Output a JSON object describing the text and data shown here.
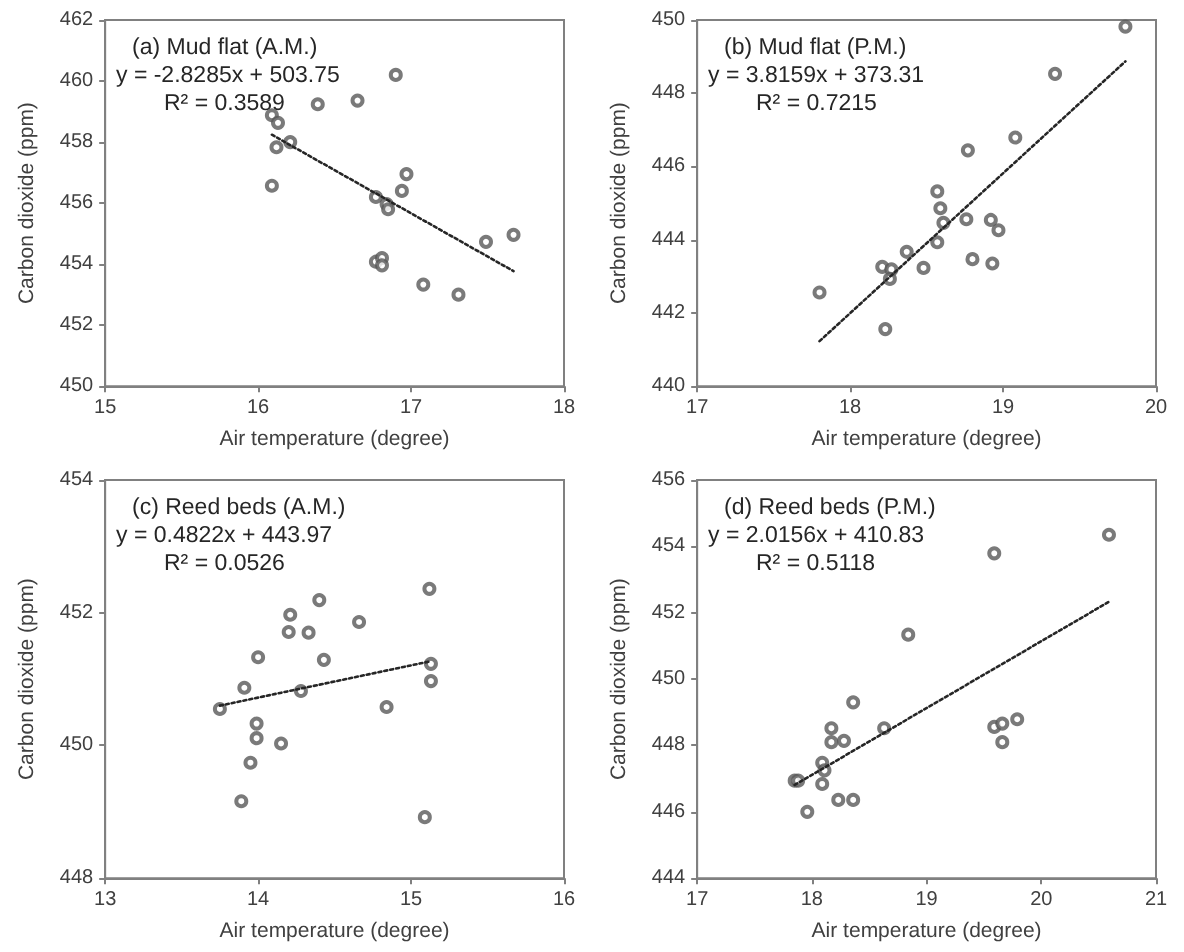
{
  "chart_data": [
    {
      "type": "scatter",
      "title": "(a) Mud flat (A.M.)",
      "annotations": [
        "y = -2.8285x + 503.75",
        "R² = 0.3589"
      ],
      "xlabel": "Air temperature (degree)",
      "ylabel": "Carbon dioxide (ppm)",
      "xlim": [
        15,
        18
      ],
      "xticks": [
        15,
        16,
        17,
        18
      ],
      "ylim": [
        450,
        462
      ],
      "yticks": [
        450,
        452,
        454,
        456,
        458,
        460,
        462
      ],
      "grid": false,
      "marker": "circle",
      "series": [
        {
          "color": "#595959",
          "x": [
            16.09,
            16.13,
            16.12,
            16.21,
            16.09,
            16.39,
            16.65,
            16.9,
            16.97,
            16.94,
            16.77,
            16.84,
            16.85,
            16.77,
            16.81,
            16.81,
            17.08,
            17.31,
            17.49,
            17.67
          ],
          "values": [
            458.88,
            458.63,
            457.83,
            458.0,
            456.57,
            459.24,
            459.36,
            460.2,
            456.95,
            456.4,
            456.2,
            455.97,
            455.8,
            454.08,
            454.2,
            453.96,
            453.33,
            453.0,
            454.73,
            454.96
          ]
        },
        {
          "type": "line",
          "color": "#262626",
          "line_style": "dotted",
          "marker": "none",
          "x": [
            16.09,
            17.67
          ],
          "values": [
            458.24,
            453.77
          ]
        }
      ]
    },
    {
      "type": "scatter",
      "title": "(b) Mud flat (P.M.)",
      "annotations": [
        "y = 3.8159x + 373.31",
        "R² = 0.7215"
      ],
      "xlabel": "Air temperature (degree)",
      "ylabel": "Carbon dioxide (ppm)",
      "xlim": [
        17,
        20
      ],
      "xticks": [
        17,
        18,
        19,
        20
      ],
      "ylim": [
        440,
        450
      ],
      "yticks": [
        440,
        442,
        444,
        446,
        448,
        450
      ],
      "grid": false,
      "marker": "circle",
      "series": [
        {
          "color": "#595959",
          "x": [
            17.8,
            18.21,
            18.27,
            18.26,
            18.23,
            18.37,
            18.48,
            18.57,
            18.59,
            18.61,
            18.57,
            18.76,
            18.77,
            18.8,
            18.92,
            18.97,
            18.93,
            19.08,
            19.34,
            19.8
          ],
          "values": [
            442.56,
            443.26,
            443.19,
            442.93,
            441.56,
            443.67,
            443.23,
            445.32,
            444.86,
            444.46,
            443.93,
            444.56,
            446.44,
            443.47,
            444.54,
            444.26,
            443.35,
            446.79,
            448.53,
            449.82
          ]
        },
        {
          "type": "line",
          "color": "#262626",
          "line_style": "dotted",
          "marker": "none",
          "x": [
            17.8,
            19.8
          ],
          "values": [
            441.23,
            448.87
          ]
        }
      ]
    },
    {
      "type": "scatter",
      "title": "(c) Reed beds (A.M.)",
      "annotations": [
        "y = 0.4822x + 443.97",
        "R² = 0.0526"
      ],
      "xlabel": "Air temperature (degree)",
      "ylabel": "Carbon dioxide (ppm)",
      "xlim": [
        13,
        16
      ],
      "xticks": [
        13,
        14,
        15,
        16
      ],
      "ylim": [
        448,
        454
      ],
      "yticks": [
        448,
        450,
        452,
        454
      ],
      "grid": false,
      "marker": "circle",
      "series": [
        {
          "color": "#595959",
          "x": [
            13.75,
            13.91,
            14.0,
            13.99,
            13.99,
            13.95,
            13.89,
            14.15,
            14.21,
            14.2,
            14.33,
            14.4,
            14.43,
            14.28,
            14.66,
            14.84,
            15.12,
            15.13,
            15.13,
            15.09
          ],
          "values": [
            450.55,
            450.87,
            451.33,
            450.33,
            450.11,
            449.74,
            449.16,
            450.03,
            451.97,
            451.71,
            451.7,
            452.19,
            451.29,
            450.82,
            451.86,
            450.58,
            452.36,
            451.23,
            450.97,
            448.92
          ]
        },
        {
          "type": "line",
          "color": "#262626",
          "line_style": "dotted",
          "marker": "none",
          "x": [
            13.75,
            15.13
          ],
          "values": [
            450.6,
            451.27
          ]
        }
      ]
    },
    {
      "type": "scatter",
      "title": "(d) Reed beds (P.M.)",
      "annotations": [
        "y = 2.0156x + 410.83",
        "R² = 0.5118"
      ],
      "xlabel": "Air temperature (degree)",
      "ylabel": "Carbon dioxide (ppm)",
      "xlim": [
        17,
        21
      ],
      "xticks": [
        17,
        18,
        19,
        20,
        21
      ],
      "ylim": [
        444,
        456
      ],
      "yticks": [
        444,
        446,
        448,
        450,
        452,
        454,
        456
      ],
      "grid": false,
      "marker": "circle",
      "series": [
        {
          "color": "#595959",
          "x": [
            17.85,
            17.88,
            17.96,
            18.09,
            18.11,
            18.09,
            18.17,
            18.17,
            18.28,
            18.23,
            18.36,
            18.36,
            18.63,
            18.84,
            19.59,
            19.66,
            19.66,
            19.79,
            19.59,
            20.59
          ],
          "values": [
            446.94,
            446.94,
            446.0,
            447.48,
            447.25,
            446.84,
            448.52,
            448.1,
            448.14,
            446.36,
            446.36,
            449.3,
            448.52,
            451.34,
            448.56,
            448.66,
            448.1,
            448.79,
            453.79,
            454.35
          ]
        },
        {
          "type": "line",
          "color": "#262626",
          "line_style": "dotted",
          "marker": "none",
          "x": [
            17.85,
            20.59
          ],
          "values": [
            446.81,
            452.33
          ]
        }
      ]
    }
  ]
}
